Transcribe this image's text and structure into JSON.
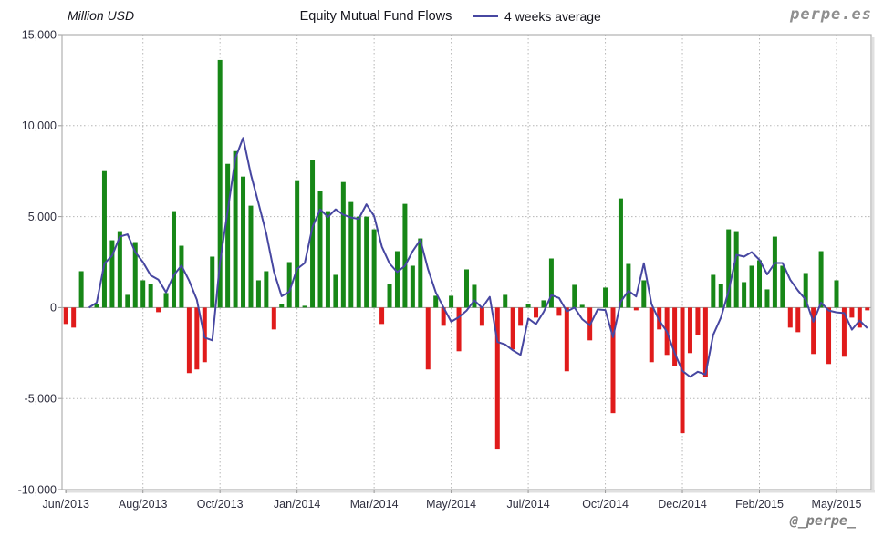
{
  "header": {
    "y_axis_title": "Million USD",
    "title": "Equity Mutual Fund Flows",
    "legend_label": "4 weeks average",
    "watermark": "perpe.es"
  },
  "footer": {
    "handle": "@_perpe_"
  },
  "chart_data": {
    "type": "bar",
    "title": "Equity Mutual Fund Flows",
    "ylabel": "Million USD",
    "frequency": "weekly",
    "x_start": "Jun/2013",
    "x_end": "May/2015",
    "ylim": [
      -10000,
      15000
    ],
    "ytick_interval": 5000,
    "ytick_labels": [
      "15,000",
      "10,000",
      "5,000",
      "0",
      "-5,000",
      "-10,000"
    ],
    "x_tick_labels": [
      "Jun/2013",
      "Aug/2013",
      "Oct/2013",
      "Jan/2014",
      "Mar/2014",
      "May/2014",
      "Jul/2014",
      "Oct/2014",
      "Dec/2014",
      "Feb/2015",
      "May/2015"
    ],
    "x_tick_step": 10,
    "grid": true,
    "legend_position": "top",
    "values": [
      -900,
      -1100,
      2000,
      0,
      200,
      7500,
      3700,
      4200,
      700,
      3600,
      1500,
      1300,
      -250,
      800,
      5300,
      3400,
      -3600,
      -3400,
      -3000,
      2800,
      13600,
      7900,
      8600,
      7200,
      5600,
      1500,
      2000,
      -1200,
      200,
      2500,
      7000,
      100,
      8100,
      6400,
      5300,
      1800,
      6900,
      5800,
      5000,
      5000,
      4300,
      -900,
      1300,
      3100,
      5700,
      2300,
      3800,
      -3400,
      650,
      -1000,
      650,
      -2400,
      2100,
      1250,
      -1000,
      0,
      -7800,
      700,
      -2300,
      -1000,
      200,
      -550,
      400,
      2700,
      -450,
      -3500,
      1250,
      150,
      -1800,
      0,
      1100,
      -5800,
      6000,
      2400,
      -150,
      1500,
      -3000,
      -1200,
      -2600,
      -3200,
      -6900,
      -2500,
      -1500,
      -3800,
      1800,
      1300,
      4300,
      4200,
      1400,
      2300,
      2600,
      1000,
      3900,
      2300,
      -1100,
      -1350,
      1900,
      -2550,
      3100,
      -3100,
      1500,
      -2700,
      -550,
      -1100,
      -150
    ],
    "series_note": "line series is the 4-week moving average computed from values",
    "style": {
      "positive_color": "#178717",
      "negative_color": "#e01b1b",
      "line_color": "#4747a1",
      "grid_color": "#b5b5b5",
      "zero_line_color": "#999999",
      "frame_color": "#b0b0b0",
      "text_color": "#2e2e3e"
    }
  }
}
